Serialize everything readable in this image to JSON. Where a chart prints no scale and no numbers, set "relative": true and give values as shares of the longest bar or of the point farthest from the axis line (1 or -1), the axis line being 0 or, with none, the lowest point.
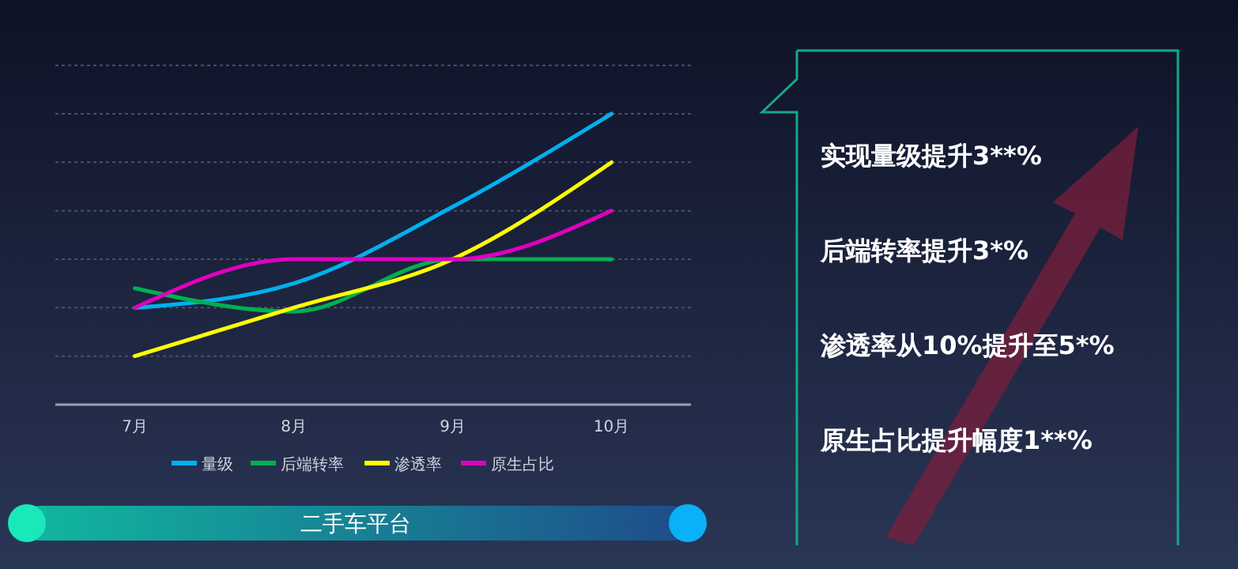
{
  "chart_data": {
    "type": "line",
    "relative": true,
    "categories": [
      "7月",
      "8月",
      "9月",
      "10月"
    ],
    "series": [
      {
        "name": "量级",
        "color": "#00b0f0",
        "values": [
          0.333,
          0.417,
          0.68,
          1
        ]
      },
      {
        "name": "后端转率",
        "color": "#00b050",
        "values": [
          0.4,
          0.32,
          0.5,
          0.5
        ]
      },
      {
        "name": "渗透率",
        "color": "#ffff00",
        "values": [
          0.167,
          0.333,
          0.5,
          0.833
        ]
      },
      {
        "name": "原生占比",
        "color": "#e000c0",
        "values": [
          0.333,
          0.5,
          0.5,
          0.667
        ]
      }
    ],
    "grid": "y",
    "legend": "bottom",
    "marker": "none",
    "line_style": "solid",
    "annotations": [
      "实现量级提升3**%",
      "后端转率提升3*%",
      "渗透率从10%提升至5*%",
      "原生占比提升幅度1**%",
      "二手车平台"
    ]
  }
}
